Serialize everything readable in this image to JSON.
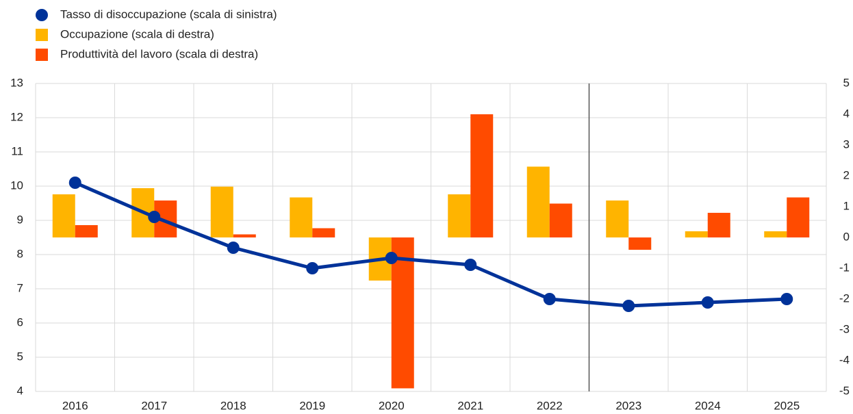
{
  "chart_data": {
    "type": "combo",
    "categories": [
      "2016",
      "2017",
      "2018",
      "2019",
      "2020",
      "2021",
      "2022",
      "2023",
      "2024",
      "2025"
    ],
    "series": [
      {
        "name": "Tasso di disoccupazione (scala di sinistra)",
        "type": "line",
        "color": "#003299",
        "axis": "y",
        "values": [
          10.1,
          9.1,
          8.2,
          7.6,
          7.9,
          7.7,
          6.7,
          6.5,
          6.6,
          6.7
        ]
      },
      {
        "name": "Occupazione (scala di destra)",
        "type": "bar",
        "color": "#ffb400",
        "axis": "y2",
        "values": [
          1.4,
          1.6,
          1.65,
          1.3,
          -1.4,
          1.4,
          2.3,
          1.2,
          0.2,
          0.2
        ]
      },
      {
        "name": "Produttività del lavoro (scala di destra)",
        "type": "bar",
        "color": "#ff4b00",
        "axis": "y2",
        "values": [
          0.4,
          1.2,
          0.1,
          0.3,
          -4.9,
          4.0,
          1.1,
          -0.4,
          0.8,
          1.3
        ]
      }
    ],
    "ylim": [
      4,
      13
    ],
    "yticks": [
      4,
      5,
      6,
      7,
      8,
      9,
      10,
      11,
      12,
      13
    ],
    "y2lim": [
      -5,
      5
    ],
    "y2ticks": [
      -5,
      -4,
      -3,
      -2,
      -1,
      0,
      1,
      2,
      3,
      4,
      5
    ],
    "grid": true,
    "legend": "top-left"
  }
}
